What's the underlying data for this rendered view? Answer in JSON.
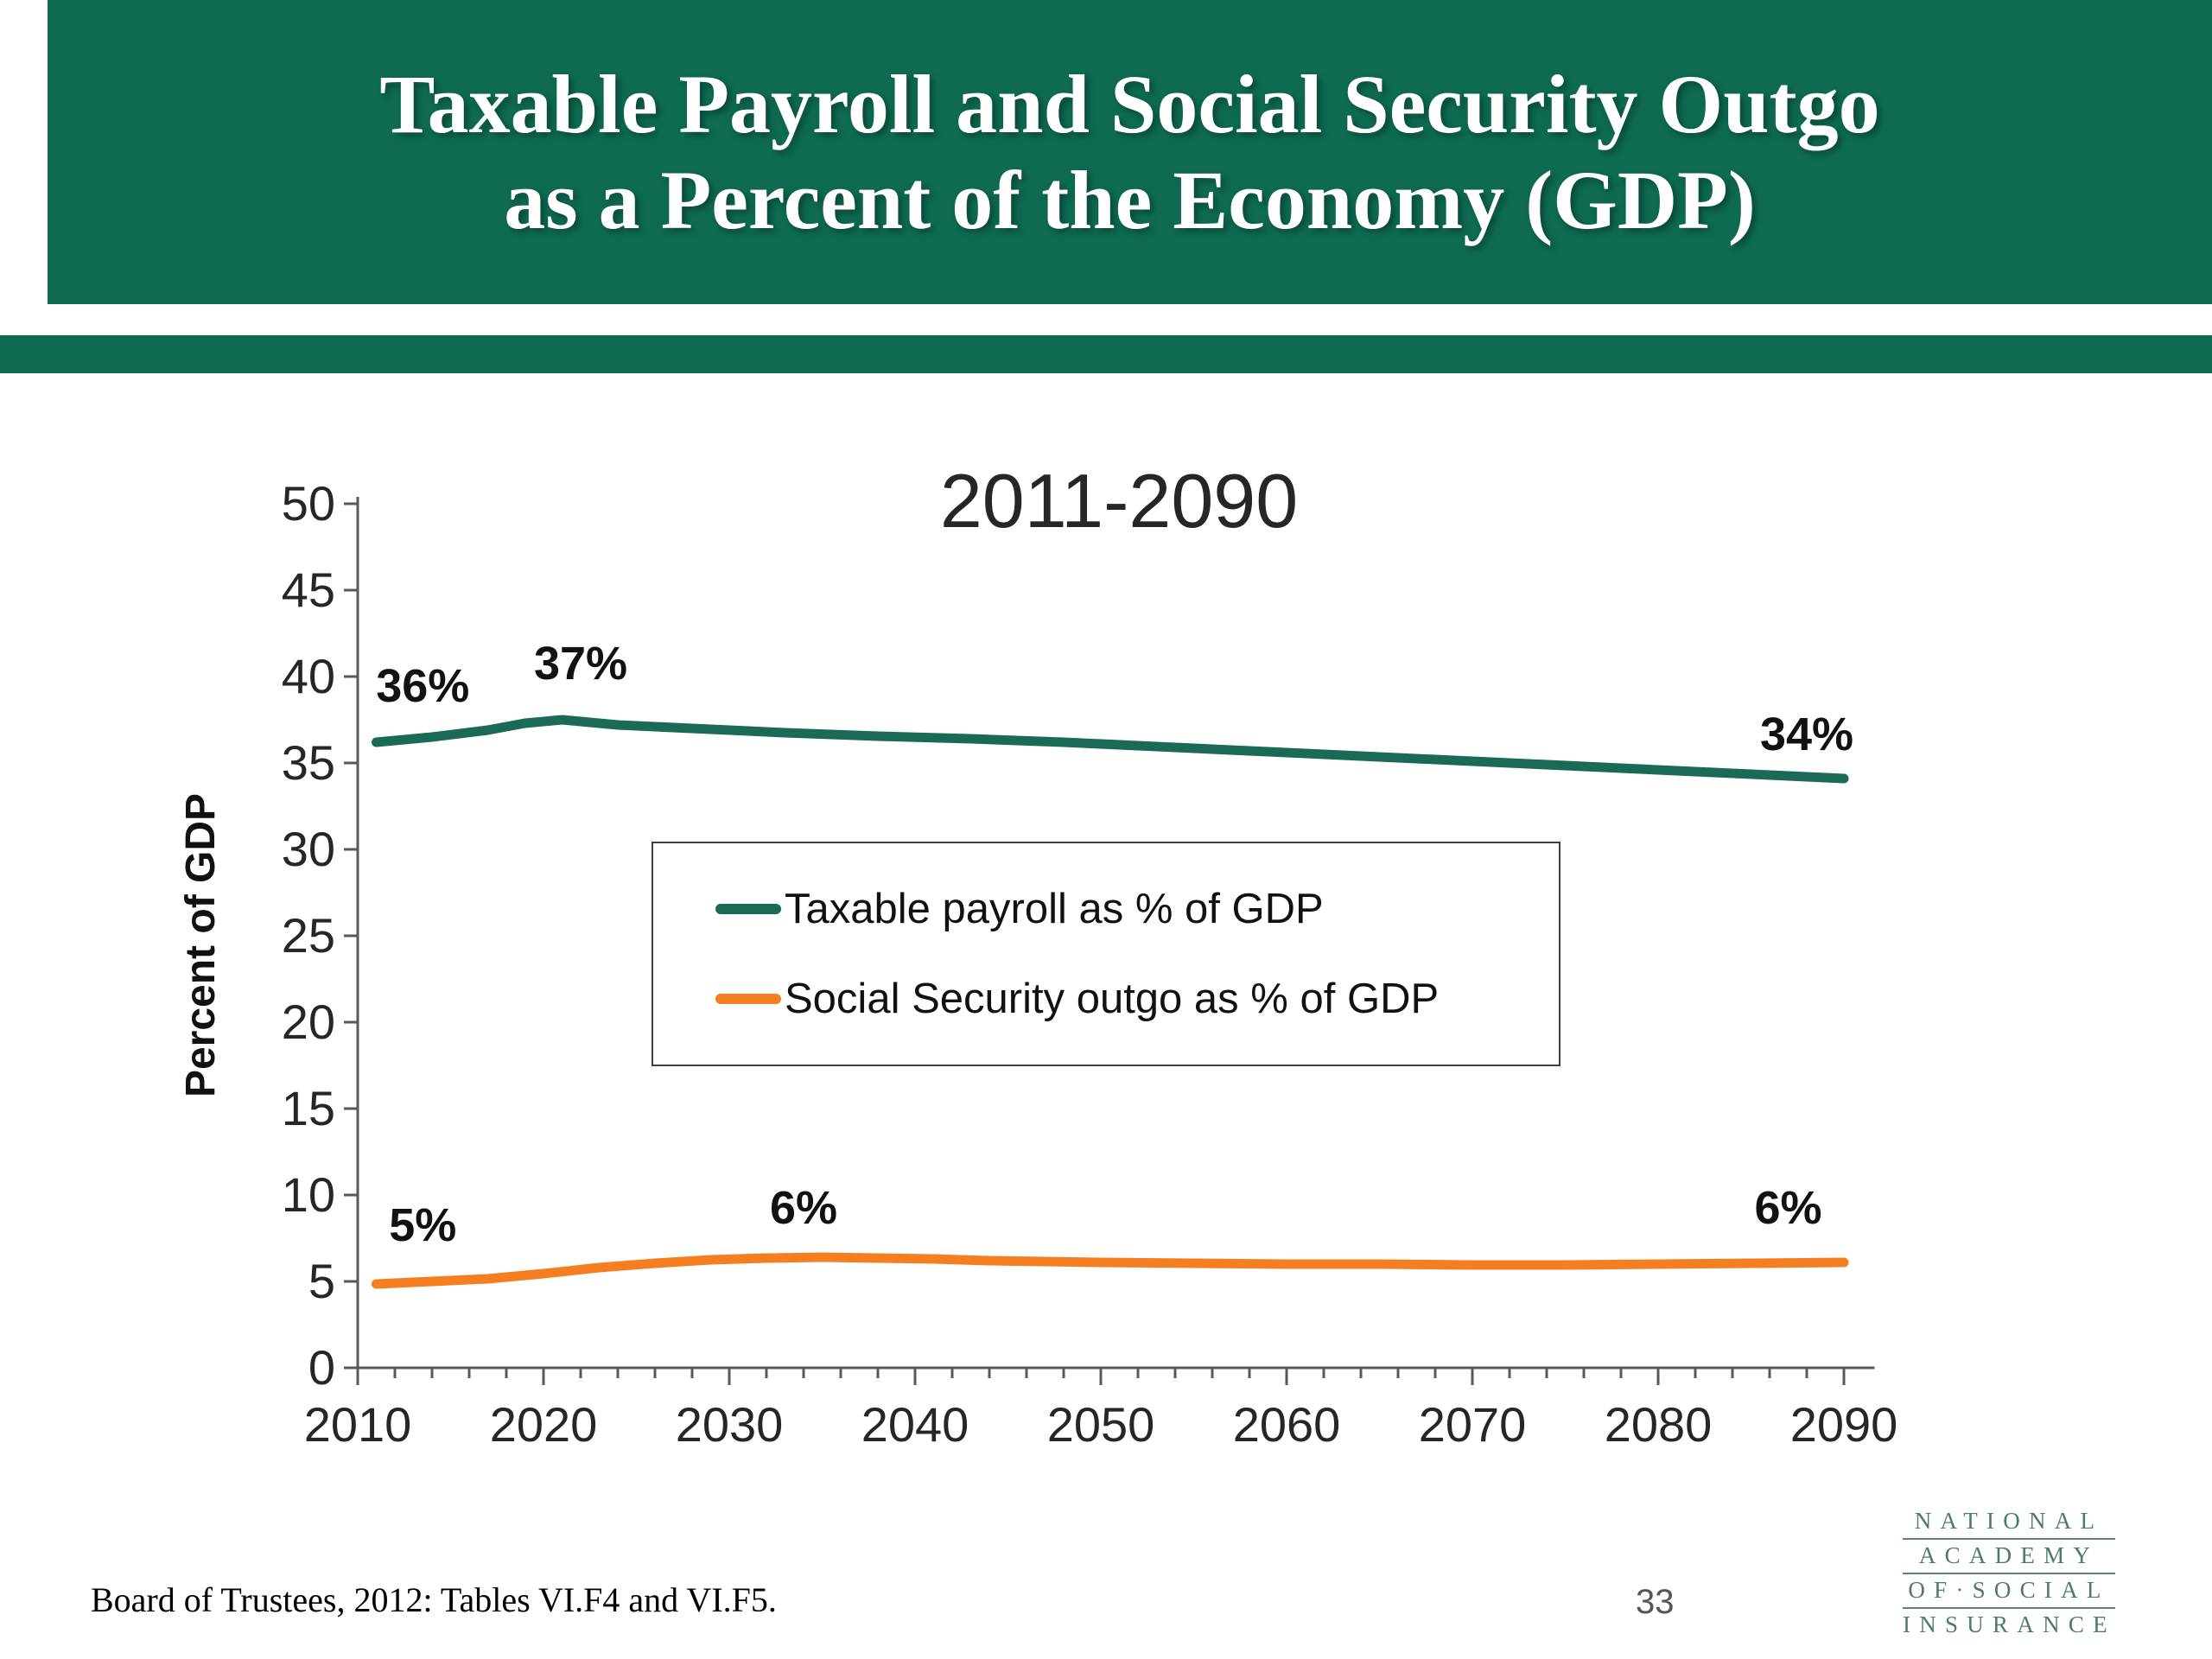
{
  "slide": {
    "title_lines": [
      "Taxable Payroll and Social Security Outgo",
      "as a Percent of the Economy (GDP)"
    ],
    "source_note": "Board of Trustees, 2012: Tables VI.F4 and VI.F5.",
    "page_number": "33",
    "logo": {
      "lines": [
        "NATIONAL",
        "ACADEMY",
        "OF·SOCIAL",
        "INSURANCE"
      ]
    }
  },
  "colors": {
    "header_green": "#0e6b52",
    "taxable_line": "#1b6a58",
    "outgo_line": "#f57e20"
  },
  "chart_data": {
    "type": "line",
    "title": "2011-2090",
    "xlabel": "",
    "ylabel": "Percent of GDP",
    "ylim": [
      0,
      50
    ],
    "ytick_step": 5,
    "xlim": [
      2010,
      2091
    ],
    "x_ticks": [
      2010,
      2020,
      2030,
      2040,
      2050,
      2060,
      2070,
      2080,
      2090
    ],
    "x_minor_step": 2,
    "grid": false,
    "legend_position": "center-inside",
    "series": [
      {
        "name": "Taxable payroll as % of GDP",
        "color": "#1b6a58",
        "points": [
          [
            2011,
            36.2
          ],
          [
            2014,
            36.5
          ],
          [
            2017,
            36.9
          ],
          [
            2019,
            37.3
          ],
          [
            2021,
            37.5
          ],
          [
            2024,
            37.2
          ],
          [
            2028,
            37.0
          ],
          [
            2033,
            36.75
          ],
          [
            2038,
            36.55
          ],
          [
            2043,
            36.4
          ],
          [
            2048,
            36.2
          ],
          [
            2053,
            35.95
          ],
          [
            2058,
            35.7
          ],
          [
            2063,
            35.45
          ],
          [
            2068,
            35.2
          ],
          [
            2073,
            34.95
          ],
          [
            2078,
            34.7
          ],
          [
            2083,
            34.45
          ],
          [
            2087,
            34.25
          ],
          [
            2090,
            34.1
          ]
        ]
      },
      {
        "name": "Social Security outgo as % of GDP",
        "color": "#f57e20",
        "points": [
          [
            2011,
            4.85
          ],
          [
            2014,
            5.0
          ],
          [
            2017,
            5.15
          ],
          [
            2020,
            5.45
          ],
          [
            2023,
            5.8
          ],
          [
            2026,
            6.05
          ],
          [
            2029,
            6.25
          ],
          [
            2032,
            6.35
          ],
          [
            2035,
            6.4
          ],
          [
            2038,
            6.35
          ],
          [
            2041,
            6.3
          ],
          [
            2044,
            6.2
          ],
          [
            2047,
            6.15
          ],
          [
            2050,
            6.1
          ],
          [
            2055,
            6.05
          ],
          [
            2060,
            6.0
          ],
          [
            2065,
            6.0
          ],
          [
            2070,
            5.95
          ],
          [
            2075,
            5.95
          ],
          [
            2080,
            6.0
          ],
          [
            2085,
            6.05
          ],
          [
            2090,
            6.1
          ]
        ]
      }
    ],
    "annotations": [
      {
        "text": "36%",
        "x": 2013.5,
        "y": 39.5,
        "series": "Taxable payroll as % of GDP"
      },
      {
        "text": "37%",
        "x": 2022.0,
        "y": 40.8,
        "series": "Taxable payroll as % of GDP"
      },
      {
        "text": "34%",
        "x": 2088.0,
        "y": 36.7,
        "series": "Taxable payroll as % of GDP"
      },
      {
        "text": "5%",
        "x": 2013.5,
        "y": 8.3,
        "series": "Social Security outgo as % of GDP"
      },
      {
        "text": "6%",
        "x": 2034.0,
        "y": 9.3,
        "series": "Social Security outgo as % of GDP"
      },
      {
        "text": "6%",
        "x": 2087.0,
        "y": 9.3,
        "series": "Social Security outgo as % of GDP"
      }
    ]
  }
}
